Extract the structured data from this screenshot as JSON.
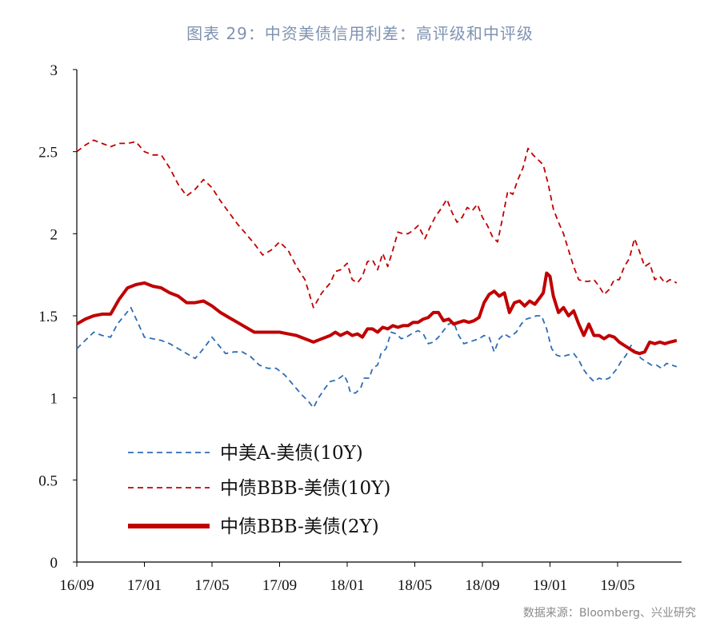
{
  "title": "图表 29：中资美债信用利差：高评级和中评级",
  "source": "数据来源：Bloomberg、兴业研究",
  "colors": {
    "blue": "#2e6db4",
    "red": "#c00000",
    "axis": "#000000"
  },
  "chart_data": {
    "type": "line",
    "xlabel": "",
    "ylabel": "",
    "ylim": [
      0,
      3
    ],
    "yticks": [
      "0",
      "0.5",
      "1",
      "1.5",
      "2",
      "2.5",
      "3"
    ],
    "xticks": [
      "16/09",
      "17/01",
      "17/05",
      "17/09",
      "18/01",
      "18/05",
      "18/09",
      "19/01",
      "19/05"
    ],
    "xlim": [
      0,
      36.5
    ],
    "grid": false,
    "legend_position": "bottom-left",
    "series": [
      {
        "name": "中美A-美债(10Y)",
        "style": "dashed",
        "color": "#2e6db4",
        "points": [
          [
            0,
            1.3
          ],
          [
            0.6,
            1.36
          ],
          [
            1.0,
            1.4
          ],
          [
            1.5,
            1.38
          ],
          [
            2.0,
            1.37
          ],
          [
            2.4,
            1.45
          ],
          [
            2.8,
            1.5
          ],
          [
            3.2,
            1.55
          ],
          [
            3.6,
            1.46
          ],
          [
            4.0,
            1.37
          ],
          [
            4.5,
            1.36
          ],
          [
            5.0,
            1.35
          ],
          [
            5.5,
            1.33
          ],
          [
            6.0,
            1.3
          ],
          [
            6.5,
            1.27
          ],
          [
            7.0,
            1.24
          ],
          [
            7.5,
            1.3
          ],
          [
            8.0,
            1.37
          ],
          [
            8.4,
            1.32
          ],
          [
            8.8,
            1.27
          ],
          [
            9.3,
            1.28
          ],
          [
            9.8,
            1.28
          ],
          [
            10.3,
            1.25
          ],
          [
            10.8,
            1.2
          ],
          [
            11.3,
            1.18
          ],
          [
            11.8,
            1.18
          ],
          [
            12.3,
            1.14
          ],
          [
            12.8,
            1.08
          ],
          [
            13.3,
            1.02
          ],
          [
            13.7,
            0.98
          ],
          [
            14.0,
            0.94
          ],
          [
            14.3,
            1.0
          ],
          [
            14.7,
            1.06
          ],
          [
            15.0,
            1.1
          ],
          [
            15.4,
            1.11
          ],
          [
            15.8,
            1.14
          ],
          [
            16.0,
            1.1
          ],
          [
            16.2,
            1.03
          ],
          [
            16.5,
            1.03
          ],
          [
            16.8,
            1.06
          ],
          [
            17.0,
            1.12
          ],
          [
            17.3,
            1.12
          ],
          [
            17.5,
            1.18
          ],
          [
            17.8,
            1.2
          ],
          [
            18.0,
            1.27
          ],
          [
            18.3,
            1.3
          ],
          [
            18.6,
            1.4
          ],
          [
            18.9,
            1.39
          ],
          [
            19.2,
            1.36
          ],
          [
            19.5,
            1.37
          ],
          [
            19.8,
            1.39
          ],
          [
            20.2,
            1.41
          ],
          [
            20.5,
            1.39
          ],
          [
            20.8,
            1.33
          ],
          [
            21.1,
            1.34
          ],
          [
            21.4,
            1.37
          ],
          [
            21.7,
            1.41
          ],
          [
            22.0,
            1.45
          ],
          [
            22.3,
            1.46
          ],
          [
            22.6,
            1.38
          ],
          [
            22.9,
            1.33
          ],
          [
            23.2,
            1.34
          ],
          [
            23.5,
            1.35
          ],
          [
            23.8,
            1.36
          ],
          [
            24.1,
            1.38
          ],
          [
            24.4,
            1.37
          ],
          [
            24.7,
            1.28
          ],
          [
            25.0,
            1.36
          ],
          [
            25.3,
            1.39
          ],
          [
            25.6,
            1.37
          ],
          [
            26.0,
            1.4
          ],
          [
            26.3,
            1.45
          ],
          [
            26.6,
            1.48
          ],
          [
            26.9,
            1.49
          ],
          [
            27.2,
            1.5
          ],
          [
            27.5,
            1.5
          ],
          [
            27.8,
            1.42
          ],
          [
            28.1,
            1.3
          ],
          [
            28.4,
            1.26
          ],
          [
            28.7,
            1.25
          ],
          [
            29.0,
            1.26
          ],
          [
            29.4,
            1.27
          ],
          [
            29.7,
            1.23
          ],
          [
            30.0,
            1.17
          ],
          [
            30.3,
            1.13
          ],
          [
            30.6,
            1.1
          ],
          [
            30.9,
            1.12
          ],
          [
            31.2,
            1.11
          ],
          [
            31.5,
            1.12
          ],
          [
            31.9,
            1.17
          ],
          [
            32.2,
            1.22
          ],
          [
            32.5,
            1.26
          ],
          [
            32.8,
            1.32
          ],
          [
            33.1,
            1.27
          ],
          [
            33.4,
            1.24
          ],
          [
            33.7,
            1.22
          ],
          [
            34.0,
            1.2
          ],
          [
            34.3,
            1.2
          ],
          [
            34.6,
            1.18
          ],
          [
            34.9,
            1.21
          ],
          [
            35.2,
            1.2
          ],
          [
            35.5,
            1.19
          ]
        ]
      },
      {
        "name": "中债BBB-美债(10Y)",
        "style": "dashed",
        "color": "#c00000",
        "points": [
          [
            0,
            2.5
          ],
          [
            0.5,
            2.54
          ],
          [
            1.0,
            2.57
          ],
          [
            1.5,
            2.55
          ],
          [
            2.0,
            2.53
          ],
          [
            2.5,
            2.55
          ],
          [
            3.0,
            2.55
          ],
          [
            3.5,
            2.56
          ],
          [
            4.0,
            2.5
          ],
          [
            4.5,
            2.48
          ],
          [
            5.0,
            2.48
          ],
          [
            5.5,
            2.4
          ],
          [
            6.0,
            2.3
          ],
          [
            6.5,
            2.23
          ],
          [
            7.0,
            2.27
          ],
          [
            7.5,
            2.33
          ],
          [
            8.0,
            2.28
          ],
          [
            8.5,
            2.2
          ],
          [
            9.0,
            2.13
          ],
          [
            9.5,
            2.06
          ],
          [
            10.0,
            2.0
          ],
          [
            10.5,
            1.94
          ],
          [
            11.0,
            1.87
          ],
          [
            11.5,
            1.9
          ],
          [
            12.0,
            1.95
          ],
          [
            12.5,
            1.9
          ],
          [
            13.0,
            1.8
          ],
          [
            13.5,
            1.72
          ],
          [
            14.0,
            1.55
          ],
          [
            14.5,
            1.64
          ],
          [
            15.0,
            1.7
          ],
          [
            15.3,
            1.77
          ],
          [
            15.6,
            1.78
          ],
          [
            16.0,
            1.82
          ],
          [
            16.3,
            1.72
          ],
          [
            16.6,
            1.7
          ],
          [
            16.9,
            1.74
          ],
          [
            17.2,
            1.83
          ],
          [
            17.5,
            1.84
          ],
          [
            17.8,
            1.78
          ],
          [
            18.1,
            1.88
          ],
          [
            18.4,
            1.8
          ],
          [
            18.7,
            1.9
          ],
          [
            19.0,
            2.01
          ],
          [
            19.3,
            2.0
          ],
          [
            19.6,
            2.0
          ],
          [
            19.9,
            2.02
          ],
          [
            20.2,
            2.05
          ],
          [
            20.6,
            1.97
          ],
          [
            20.9,
            2.04
          ],
          [
            21.2,
            2.1
          ],
          [
            21.6,
            2.16
          ],
          [
            21.9,
            2.21
          ],
          [
            22.2,
            2.13
          ],
          [
            22.5,
            2.07
          ],
          [
            22.8,
            2.1
          ],
          [
            23.1,
            2.16
          ],
          [
            23.4,
            2.14
          ],
          [
            23.7,
            2.18
          ],
          [
            24.0,
            2.1
          ],
          [
            24.3,
            2.05
          ],
          [
            24.6,
            1.98
          ],
          [
            24.9,
            1.95
          ],
          [
            25.2,
            2.1
          ],
          [
            25.5,
            2.26
          ],
          [
            25.8,
            2.24
          ],
          [
            26.1,
            2.33
          ],
          [
            26.4,
            2.4
          ],
          [
            26.7,
            2.52
          ],
          [
            27.0,
            2.48
          ],
          [
            27.3,
            2.45
          ],
          [
            27.6,
            2.42
          ],
          [
            27.9,
            2.3
          ],
          [
            28.2,
            2.15
          ],
          [
            28.5,
            2.07
          ],
          [
            28.8,
            2.0
          ],
          [
            29.1,
            1.9
          ],
          [
            29.4,
            1.8
          ],
          [
            29.7,
            1.72
          ],
          [
            30.0,
            1.71
          ],
          [
            30.3,
            1.71
          ],
          [
            30.6,
            1.72
          ],
          [
            30.9,
            1.68
          ],
          [
            31.2,
            1.63
          ],
          [
            31.5,
            1.66
          ],
          [
            31.8,
            1.72
          ],
          [
            32.1,
            1.72
          ],
          [
            32.4,
            1.8
          ],
          [
            32.7,
            1.85
          ],
          [
            33.0,
            1.97
          ],
          [
            33.3,
            1.89
          ],
          [
            33.6,
            1.8
          ],
          [
            33.9,
            1.82
          ],
          [
            34.2,
            1.72
          ],
          [
            34.5,
            1.74
          ],
          [
            34.8,
            1.7
          ],
          [
            35.1,
            1.72
          ],
          [
            35.5,
            1.7
          ]
        ]
      },
      {
        "name": "中债BBB-美债(2Y)",
        "style": "solid",
        "color": "#c00000",
        "points": [
          [
            0,
            1.45
          ],
          [
            0.5,
            1.48
          ],
          [
            1.0,
            1.5
          ],
          [
            1.5,
            1.51
          ],
          [
            2.0,
            1.51
          ],
          [
            2.5,
            1.6
          ],
          [
            3.0,
            1.67
          ],
          [
            3.5,
            1.69
          ],
          [
            4.0,
            1.7
          ],
          [
            4.5,
            1.68
          ],
          [
            5.0,
            1.67
          ],
          [
            5.5,
            1.64
          ],
          [
            6.0,
            1.62
          ],
          [
            6.5,
            1.58
          ],
          [
            7.0,
            1.58
          ],
          [
            7.5,
            1.59
          ],
          [
            8.0,
            1.56
          ],
          [
            8.5,
            1.52
          ],
          [
            9.0,
            1.49
          ],
          [
            9.5,
            1.46
          ],
          [
            10.0,
            1.43
          ],
          [
            10.5,
            1.4
          ],
          [
            11.0,
            1.4
          ],
          [
            11.5,
            1.4
          ],
          [
            12.0,
            1.4
          ],
          [
            12.5,
            1.39
          ],
          [
            13.0,
            1.38
          ],
          [
            13.5,
            1.36
          ],
          [
            14.0,
            1.34
          ],
          [
            14.5,
            1.36
          ],
          [
            15.0,
            1.38
          ],
          [
            15.3,
            1.4
          ],
          [
            15.6,
            1.38
          ],
          [
            16.0,
            1.4
          ],
          [
            16.3,
            1.38
          ],
          [
            16.6,
            1.39
          ],
          [
            16.9,
            1.37
          ],
          [
            17.2,
            1.42
          ],
          [
            17.5,
            1.42
          ],
          [
            17.8,
            1.4
          ],
          [
            18.1,
            1.43
          ],
          [
            18.4,
            1.42
          ],
          [
            18.7,
            1.44
          ],
          [
            19.0,
            1.43
          ],
          [
            19.3,
            1.44
          ],
          [
            19.6,
            1.44
          ],
          [
            19.9,
            1.46
          ],
          [
            20.2,
            1.46
          ],
          [
            20.5,
            1.48
          ],
          [
            20.8,
            1.49
          ],
          [
            21.1,
            1.52
          ],
          [
            21.4,
            1.52
          ],
          [
            21.7,
            1.47
          ],
          [
            22.0,
            1.48
          ],
          [
            22.3,
            1.45
          ],
          [
            22.6,
            1.46
          ],
          [
            22.9,
            1.47
          ],
          [
            23.2,
            1.46
          ],
          [
            23.5,
            1.47
          ],
          [
            23.8,
            1.49
          ],
          [
            24.1,
            1.58
          ],
          [
            24.4,
            1.63
          ],
          [
            24.7,
            1.65
          ],
          [
            25.0,
            1.62
          ],
          [
            25.3,
            1.64
          ],
          [
            25.6,
            1.52
          ],
          [
            25.9,
            1.58
          ],
          [
            26.2,
            1.59
          ],
          [
            26.5,
            1.56
          ],
          [
            26.8,
            1.59
          ],
          [
            27.1,
            1.57
          ],
          [
            27.4,
            1.61
          ],
          [
            27.6,
            1.64
          ],
          [
            27.8,
            1.76
          ],
          [
            28.0,
            1.74
          ],
          [
            28.2,
            1.62
          ],
          [
            28.5,
            1.52
          ],
          [
            28.8,
            1.55
          ],
          [
            29.1,
            1.5
          ],
          [
            29.4,
            1.53
          ],
          [
            29.7,
            1.45
          ],
          [
            30.0,
            1.38
          ],
          [
            30.3,
            1.45
          ],
          [
            30.6,
            1.38
          ],
          [
            30.9,
            1.38
          ],
          [
            31.2,
            1.36
          ],
          [
            31.5,
            1.38
          ],
          [
            31.8,
            1.37
          ],
          [
            32.1,
            1.34
          ],
          [
            32.4,
            1.32
          ],
          [
            32.7,
            1.3
          ],
          [
            33.0,
            1.28
          ],
          [
            33.3,
            1.27
          ],
          [
            33.6,
            1.28
          ],
          [
            33.9,
            1.34
          ],
          [
            34.2,
            1.33
          ],
          [
            34.5,
            1.34
          ],
          [
            34.8,
            1.33
          ],
          [
            35.1,
            1.34
          ],
          [
            35.5,
            1.35
          ]
        ]
      }
    ]
  }
}
